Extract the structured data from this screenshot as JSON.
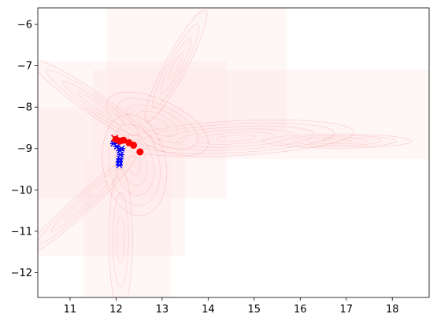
{
  "chart_data": {
    "type": "scatter",
    "xlim": [
      10.3,
      18.8
    ],
    "ylim": [
      -12.6,
      -5.6
    ],
    "x_ticks": [
      {
        "value": 11,
        "label": "11"
      },
      {
        "value": 12,
        "label": "12"
      },
      {
        "value": 13,
        "label": "13"
      },
      {
        "value": 14,
        "label": "14"
      },
      {
        "value": 15,
        "label": "15"
      },
      {
        "value": 16,
        "label": "16"
      },
      {
        "value": 17,
        "label": "17"
      },
      {
        "value": 18,
        "label": "18"
      }
    ],
    "y_ticks": [
      {
        "value": -6,
        "label": "−6"
      },
      {
        "value": -7,
        "label": "−7"
      },
      {
        "value": -8,
        "label": "−8"
      },
      {
        "value": -9,
        "label": "−9"
      },
      {
        "value": -10,
        "label": "−10"
      },
      {
        "value": -11,
        "label": "−11"
      },
      {
        "value": -12,
        "label": "−12"
      }
    ],
    "grid": false,
    "red_points": [
      {
        "x": 12.0,
        "y": -8.78
      },
      {
        "x": 12.08,
        "y": -8.82
      },
      {
        "x": 12.16,
        "y": -8.8
      },
      {
        "x": 12.28,
        "y": -8.86
      },
      {
        "x": 12.38,
        "y": -8.92
      },
      {
        "x": 12.52,
        "y": -9.08
      }
    ],
    "red_x_marker": {
      "x": 11.97,
      "y": -8.75
    },
    "blue_points": [
      {
        "x": 11.95,
        "y": -8.88
      },
      {
        "x": 12.02,
        "y": -8.95
      },
      {
        "x": 12.08,
        "y": -9.05
      },
      {
        "x": 12.1,
        "y": -9.15
      },
      {
        "x": 12.08,
        "y": -9.25
      },
      {
        "x": 12.07,
        "y": -9.32
      },
      {
        "x": 12.07,
        "y": -9.4
      },
      {
        "x": 12.12,
        "y": -9.0
      }
    ],
    "density_regions": [
      {
        "x0": 10.3,
        "x1": 14.4,
        "y0": -10.2,
        "y1": -6.9
      },
      {
        "x0": 10.3,
        "x1": 13.5,
        "y0": -11.6,
        "y1": -8.0
      },
      {
        "x0": 11.5,
        "x1": 18.8,
        "y0": -9.25,
        "y1": -7.1
      },
      {
        "x0": 11.3,
        "x1": 13.2,
        "y0": -12.6,
        "y1": -9.3
      },
      {
        "x0": 11.8,
        "x1": 15.7,
        "y0": -8.6,
        "y1": -5.6
      }
    ],
    "colors": {
      "red": "#ff0000",
      "blue": "#0000ff",
      "contour": "#f08080",
      "fill": "#ffe6e6"
    }
  }
}
